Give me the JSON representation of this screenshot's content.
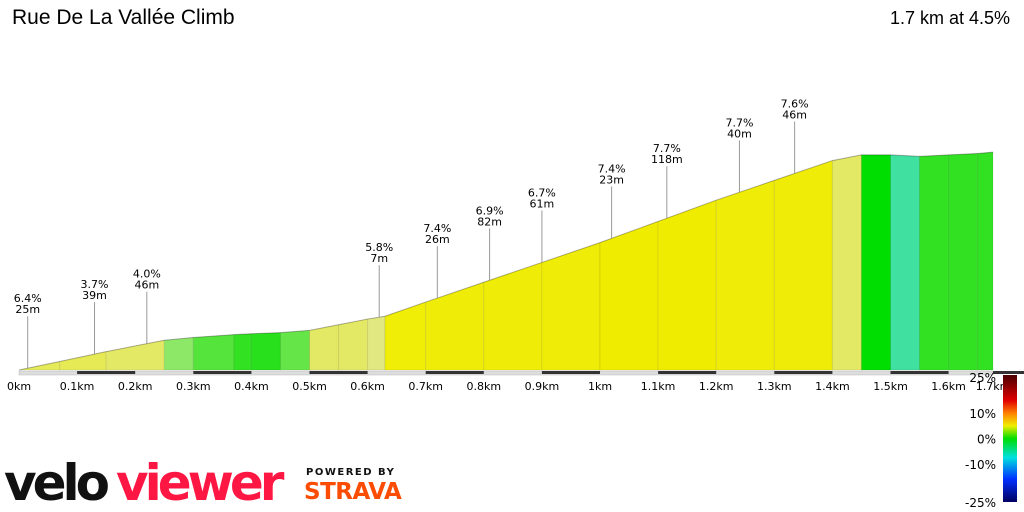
{
  "title": "Rue De La Vallée Climb",
  "summary": "1.7 km at 4.5%",
  "chart_data": {
    "type": "area",
    "xlabel": "",
    "ylabel": "",
    "xlim": [
      0,
      1.7
    ],
    "x_ticks": [
      "0km",
      "0.1km",
      "0.2km",
      "0.3km",
      "0.4km",
      "0.5km",
      "0.6km",
      "0.7km",
      "0.8km",
      "0.9km",
      "1km",
      "1.1km",
      "1.2km",
      "1.3km",
      "1.4km",
      "1.5km",
      "1.6km",
      "1.7km"
    ],
    "profile_km": [
      0,
      0.07,
      0.15,
      0.25,
      0.3,
      0.37,
      0.4,
      0.45,
      0.5,
      0.55,
      0.6,
      0.63,
      0.7,
      0.8,
      0.9,
      1.0,
      1.1,
      1.2,
      1.3,
      1.4,
      1.45,
      1.5,
      1.55,
      1.6,
      1.65,
      1.7
    ],
    "profile_elev_m": [
      0,
      3,
      6.5,
      10.5,
      11.5,
      12.5,
      12.8,
      13.2,
      14,
      16,
      18,
      19,
      24,
      31,
      38,
      45,
      52.5,
      60,
      67,
      74,
      76,
      76,
      75.5,
      76,
      76.5,
      77
    ],
    "annotations": [
      {
        "km": 0.015,
        "gradient": "6.4%",
        "length": "25m"
      },
      {
        "km": 0.13,
        "gradient": "3.7%",
        "length": "39m"
      },
      {
        "km": 0.22,
        "gradient": "4.0%",
        "length": "46m"
      },
      {
        "km": 0.62,
        "gradient": "5.8%",
        "length": "7m"
      },
      {
        "km": 0.72,
        "gradient": "7.4%",
        "length": "26m"
      },
      {
        "km": 0.81,
        "gradient": "6.9%",
        "length": "82m"
      },
      {
        "km": 0.9,
        "gradient": "6.7%",
        "length": "61m"
      },
      {
        "km": 1.02,
        "gradient": "7.4%",
        "length": "23m"
      },
      {
        "km": 1.115,
        "gradient": "7.7%",
        "length": "118m"
      },
      {
        "km": 1.24,
        "gradient": "7.7%",
        "length": "40m"
      },
      {
        "km": 1.335,
        "gradient": "7.6%",
        "length": "46m"
      }
    ],
    "color_scale": {
      "labels": [
        "25%",
        "10%",
        "0%",
        "-10%",
        "-25%"
      ],
      "values": [
        25,
        10,
        0,
        -10,
        -25
      ],
      "colors": [
        "#4a0000",
        "#e00000",
        "#ff8000",
        "#f0ee00",
        "#00dd00",
        "#00e0e0",
        "#0030ff",
        "#000060"
      ]
    }
  },
  "branding": {
    "logo_part1": "velo",
    "logo_part2": "viewer",
    "logo_color1": "#111111",
    "logo_color2": "#ff1744",
    "powered_by": "POWERED BY",
    "strava": "STRAVA",
    "strava_color": "#fc4c02"
  }
}
